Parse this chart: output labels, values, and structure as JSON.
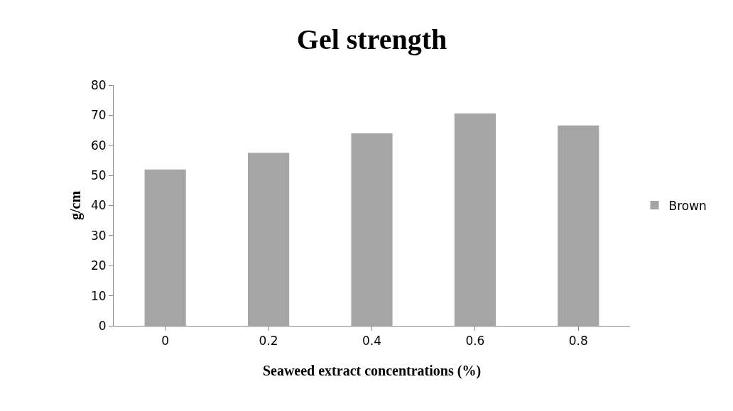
{
  "chart_data": {
    "type": "bar",
    "title": "Gel strength",
    "xlabel": "Seaweed extract concentrations (%)",
    "ylabel": "g/cm",
    "categories": [
      "0",
      "0.2",
      "0.4",
      "0.6",
      "0.8"
    ],
    "series": [
      {
        "name": "Brown",
        "color": "#a5a5a5",
        "values": [
          52,
          57.5,
          64,
          70.6,
          66.6
        ]
      }
    ],
    "ylim": [
      0,
      80
    ],
    "yticks": [
      0,
      10,
      20,
      30,
      40,
      50,
      60,
      70,
      80
    ],
    "grid": false,
    "legend": "right"
  }
}
